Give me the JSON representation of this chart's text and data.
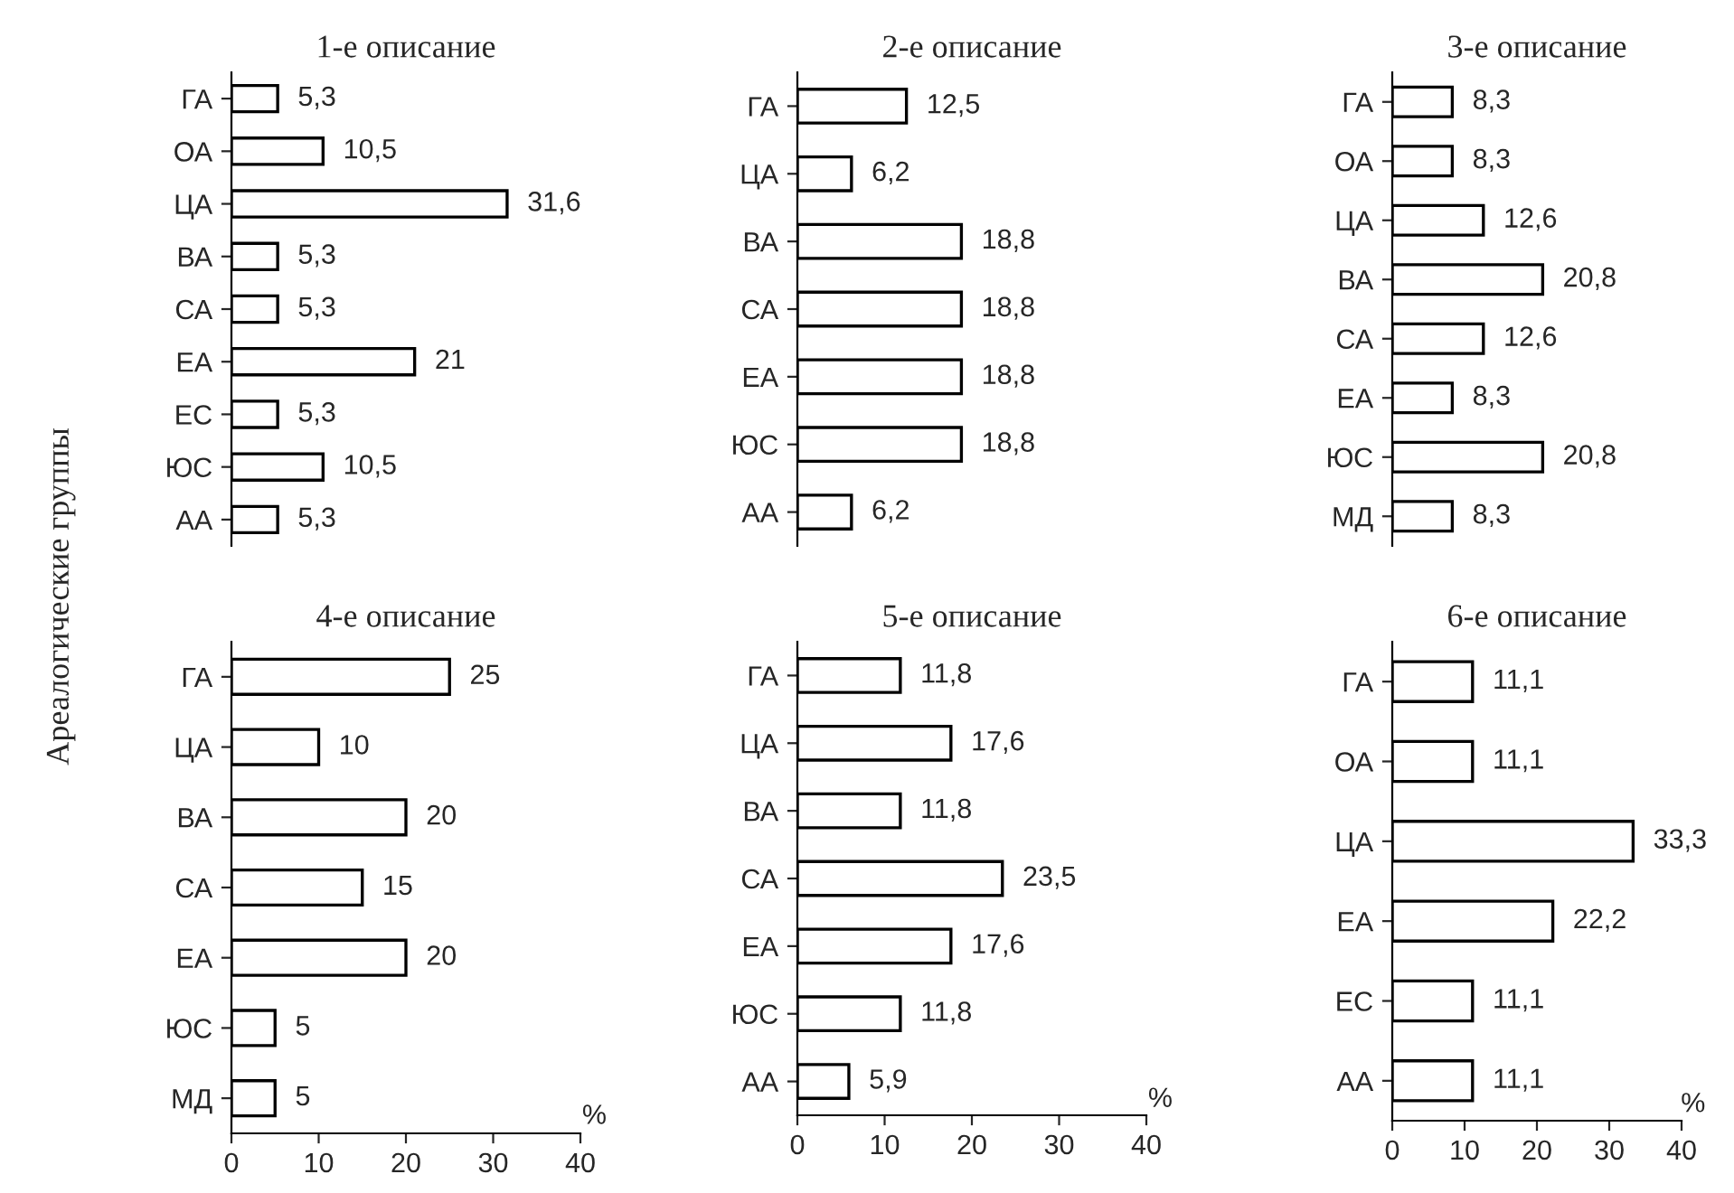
{
  "chart_data": [
    {
      "type": "bar",
      "orientation": "horizontal",
      "title": "1-е описание",
      "ylabel": "Ареалогические группы",
      "categories": [
        "ГА",
        "ОА",
        "ЦА",
        "ВА",
        "СА",
        "ЕА",
        "ЕС",
        "ЮС",
        "АА"
      ],
      "values": [
        5.3,
        10.5,
        31.6,
        5.3,
        5.3,
        21,
        5.3,
        10.5,
        5.3
      ],
      "value_labels": [
        "5,3",
        "10,5",
        "31,6",
        "5,3",
        "5,3",
        "21",
        "5,3",
        "10,5",
        "5,3"
      ],
      "color": "#ffffff",
      "xlim": [
        0,
        40
      ],
      "tick_labels": "y"
    },
    {
      "type": "bar",
      "orientation": "horizontal",
      "title": "2-е описание",
      "categories": [
        "ГА",
        "ЦА",
        "ВА",
        "СА",
        "ЕА",
        "ЮС",
        "АА"
      ],
      "values": [
        12.5,
        6.2,
        18.8,
        18.8,
        18.8,
        18.8,
        6.2
      ],
      "value_labels": [
        "12,5",
        "6,2",
        "18,8",
        "18,8",
        "18,8",
        "18,8",
        "6,2"
      ],
      "color": "#ffffff",
      "xlim": [
        0,
        40
      ],
      "tick_labels": "y"
    },
    {
      "type": "bar",
      "orientation": "horizontal",
      "title": "3-е описание",
      "categories": [
        "ГА",
        "ОА",
        "ЦА",
        "ВА",
        "СА",
        "ЕА",
        "ЮС",
        "МД"
      ],
      "values": [
        8.3,
        8.3,
        12.6,
        20.8,
        12.6,
        8.3,
        20.8,
        8.3
      ],
      "value_labels": [
        "8,3",
        "8,3",
        "12,6",
        "20,8",
        "12,6",
        "8,3",
        "20,8",
        "8,3"
      ],
      "color": "#ffffff",
      "xlim": [
        0,
        40
      ],
      "tick_labels": "y"
    },
    {
      "type": "bar",
      "orientation": "horizontal",
      "title": "4-е описание",
      "xlabel": "%",
      "categories": [
        "ГА",
        "ЦА",
        "ВА",
        "СА",
        "ЕА",
        "ЮС",
        "МД"
      ],
      "values": [
        25,
        10,
        20,
        15,
        20,
        5,
        5
      ],
      "value_labels": [
        "25",
        "10",
        "20",
        "15",
        "20",
        "5",
        "5"
      ],
      "color": "#ffffff",
      "xlim": [
        0,
        40
      ],
      "xticks": [
        0,
        10,
        20,
        30,
        40
      ]
    },
    {
      "type": "bar",
      "orientation": "horizontal",
      "title": "5-е описание",
      "xlabel": "%",
      "categories": [
        "ГА",
        "ЦА",
        "ВА",
        "СА",
        "ЕА",
        "ЮС",
        "АА"
      ],
      "values": [
        11.8,
        17.6,
        11.8,
        23.5,
        17.6,
        11.8,
        5.9
      ],
      "value_labels": [
        "11,8",
        "17,6",
        "11,8",
        "23,5",
        "17,6",
        "11,8",
        "5,9"
      ],
      "color": "#ffffff",
      "xlim": [
        0,
        40
      ],
      "xticks": [
        0,
        10,
        20,
        30,
        40
      ]
    },
    {
      "type": "bar",
      "orientation": "horizontal",
      "title": "6-е описание",
      "xlabel": "%",
      "categories": [
        "ГА",
        "ОА",
        "ЦА",
        "ЕА",
        "ЕС",
        "АА"
      ],
      "values": [
        11.1,
        11.1,
        33.3,
        22.2,
        11.1,
        11.1
      ],
      "value_labels": [
        "11,1",
        "11,1",
        "33,3",
        "22,2",
        "11,1",
        "11,1"
      ],
      "color": "#ffffff",
      "xlim": [
        0,
        40
      ],
      "xticks": [
        0,
        10,
        20,
        30,
        40
      ]
    }
  ]
}
